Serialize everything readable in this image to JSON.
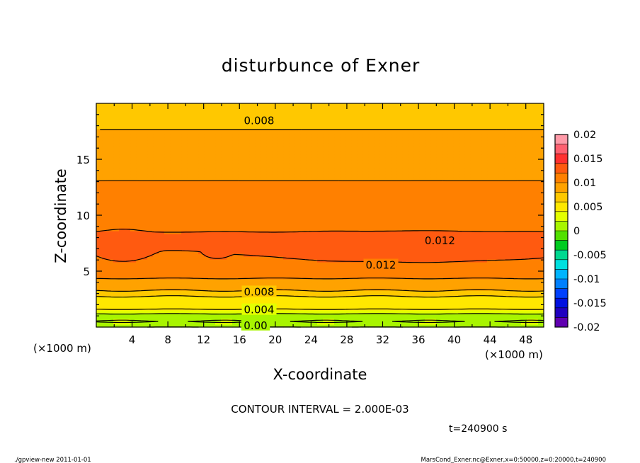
{
  "chart_data": {
    "type": "contour",
    "title": "disturbunce of Exner",
    "xlabel": "X-coordinate",
    "ylabel": "Z-coordinate",
    "x_unit": "(×1000 m)",
    "x_unit_left": "(×1000 m)",
    "xlim": [
      0,
      50
    ],
    "ylim": [
      0,
      20
    ],
    "x_ticks": [
      "4",
      "8",
      "12",
      "16",
      "20",
      "24",
      "28",
      "32",
      "36",
      "40",
      "44",
      "48"
    ],
    "y_ticks": [
      "5",
      "10",
      "15"
    ],
    "contour_interval_text": "CONTOUR INTERVAL = 2.000E-03",
    "time_text": "t=240900 s",
    "contour_labels": [
      {
        "text": "0.008",
        "x": 18.2,
        "z": 18.5
      },
      {
        "text": "0.012",
        "x": 38.4,
        "z": 7.8
      },
      {
        "text": "0.012",
        "x": 31.8,
        "z": 5.6
      },
      {
        "text": "0.008",
        "x": 18.2,
        "z": 3.2
      },
      {
        "text": "0.004",
        "x": 18.2,
        "z": 1.6
      },
      {
        "text": "0.00",
        "x": 17.8,
        "z": 0.2
      }
    ],
    "colorbar": {
      "labels": [
        "0.02",
        "0.015",
        "0.01",
        "0.005",
        "0",
        "-0.005",
        "-0.01",
        "-0.015",
        "-0.02"
      ],
      "levels": [
        0.02,
        0.018,
        0.016,
        0.014,
        0.012,
        0.01,
        0.008,
        0.006,
        0.004,
        0.002,
        0.0,
        -0.002,
        -0.004,
        -0.006,
        -0.008,
        -0.01,
        -0.012,
        -0.014,
        -0.016,
        -0.018,
        -0.02
      ],
      "colors": [
        "#ff9aa8",
        "#ff6070",
        "#ff3030",
        "#ff5a10",
        "#ff8000",
        "#ffa200",
        "#ffc800",
        "#ffe800",
        "#e4ff00",
        "#a8f500",
        "#52e000",
        "#00cc20",
        "#00d890",
        "#00e0e0",
        "#00b4ff",
        "#0080ff",
        "#0040ff",
        "#0010e0",
        "#2000c0",
        "#6000b0"
      ]
    }
  },
  "footer_left": "./gpview-new   2011-01-01",
  "footer_right": "MarsCond_Exner.nc@Exner,x=0:50000,z=0:20000,t=240900"
}
